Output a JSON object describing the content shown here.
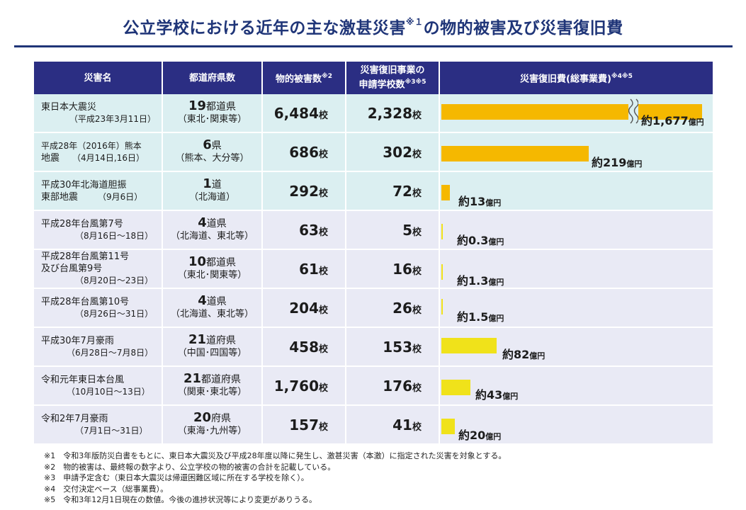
{
  "title": {
    "main": "公立学校における近年の主な激甚災害",
    "sup": "※１",
    "rest": "の物的被害及び災害復旧費"
  },
  "headers": {
    "name": "災害名",
    "pref": "都道府県数",
    "damage": "物的被害数",
    "damage_sup": "※2",
    "apply_1": "災害復旧事業の",
    "apply_2": "申請学校数",
    "apply_sup": "※3※5",
    "cost": "災害復旧費(総事業費)",
    "cost_sup": "※4※5"
  },
  "unit_school": "校",
  "unit_cost": "億円",
  "rows": [
    {
      "name_1": "東日本大震災",
      "name_2": "",
      "period": "（平成23年3月11日）",
      "pref_num": "19",
      "pref_suffix": "都道県",
      "areas": "（東北･関東等）",
      "damage": "6,484",
      "apply": "2,328",
      "cost_prefix": "約",
      "cost": "1,677",
      "cost_value": 1677
    },
    {
      "name_1": "平成28年（2016年）熊本",
      "name_2": "地震",
      "period": "（4月14日,16日）",
      "pref_num": "6",
      "pref_suffix": "県",
      "areas": "（熊本、大分等）",
      "damage": "686",
      "apply": "302",
      "cost_prefix": "約",
      "cost": "219",
      "cost_value": 219
    },
    {
      "name_1": "平成30年北海道胆振",
      "name_2": "東部地震",
      "period": "（9月6日）",
      "pref_num": "1",
      "pref_suffix": "道",
      "areas": "（北海道）",
      "damage": "292",
      "apply": "72",
      "cost_prefix": "約",
      "cost": "13",
      "cost_value": 13
    },
    {
      "name_1": "平成28年台風第7号",
      "name_2": "",
      "period": "（8月16日～18日）",
      "pref_num": "4",
      "pref_suffix": "道県",
      "areas": "（北海道、東北等）",
      "damage": "63",
      "apply": "5",
      "cost_prefix": "約",
      "cost": "0.3",
      "cost_value": 0.3
    },
    {
      "name_1": "平成28年台風第11号",
      "name_2": "及び台風第9号",
      "period": "（8月20日～23日）",
      "pref_num": "10",
      "pref_suffix": "都道県",
      "areas": "（東北･関東等）",
      "damage": "61",
      "apply": "16",
      "cost_prefix": "約",
      "cost": "1.3",
      "cost_value": 1.3
    },
    {
      "name_1": "平成28年台風第10号",
      "name_2": "",
      "period": "（8月26日～31日）",
      "pref_num": "4",
      "pref_suffix": "道県",
      "areas": "（北海道、東北等）",
      "damage": "204",
      "apply": "26",
      "cost_prefix": "約",
      "cost": "1.5",
      "cost_value": 1.5
    },
    {
      "name_1": "平成30年7月豪雨",
      "name_2": "",
      "period": "（6月28日～7月8日）",
      "pref_num": "21",
      "pref_suffix": "道府県",
      "areas": "（中国･四国等）",
      "damage": "458",
      "apply": "153",
      "cost_prefix": "約",
      "cost": "82",
      "cost_value": 82
    },
    {
      "name_1": "令和元年東日本台風",
      "name_2": "",
      "period": "（10月10日～13日）",
      "pref_num": "21",
      "pref_suffix": "都道府県",
      "areas": "（関東･東北等）",
      "damage": "1,760",
      "apply": "176",
      "cost_prefix": "約",
      "cost": "43",
      "cost_value": 43
    },
    {
      "name_1": "令和2年7月豪雨",
      "name_2": "",
      "period": "（7月1日～31日）",
      "pref_num": "20",
      "pref_suffix": "府県",
      "areas": "（東海･九州等）",
      "damage": "157",
      "apply": "41",
      "cost_prefix": "約",
      "cost": "20",
      "cost_value": 20
    }
  ],
  "notes": [
    "※1　令和3年版防災白書をもとに、東日本大震災及び平成28年度以降に発生し、激甚災害（本激）に指定された災害を対象とする。",
    "※2　物的被害は、最終報の数字より、公立学校の物的被害の合計を記載している。",
    "※3　申請予定含む（東日本大震災は帰還困難区域に所在する学校を除く）。",
    "※4　交付決定ベース（総事業費）。",
    "※5　令和3年12月1日現在の数値。今後の進捗状況等により変更がありうる。"
  ],
  "colors": {
    "header_bg": "#2b2e83",
    "title": "#1f3578",
    "quake_row": "#dbeff1",
    "storm_row": "#e9eaf5",
    "bar_quake": "#f5b800",
    "bar_storm": "#f0e21a"
  }
}
